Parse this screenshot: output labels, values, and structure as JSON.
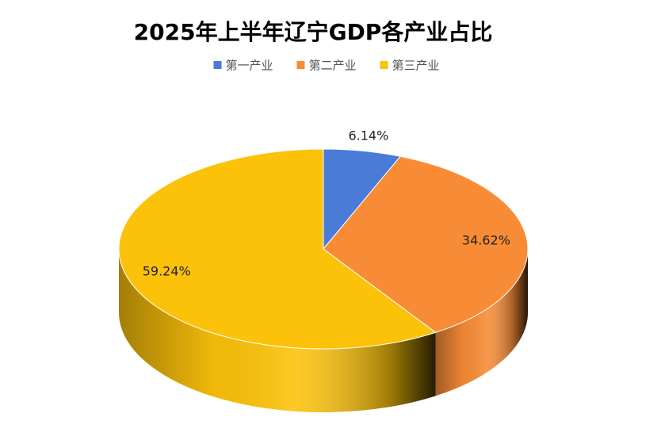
{
  "chart_data": {
    "type": "pie3d",
    "title": "2025年上半年辽宁GDP各产业占比",
    "categories": [
      "第一产业",
      "第二产业",
      "第三产业"
    ],
    "values": [
      6.14,
      34.62,
      59.24
    ],
    "value_labels": [
      "6.14%",
      "34.62%",
      "59.24%"
    ],
    "colors": [
      "#4a7bd6",
      "#f88c36",
      "#fcc20a"
    ],
    "legend": "top"
  }
}
